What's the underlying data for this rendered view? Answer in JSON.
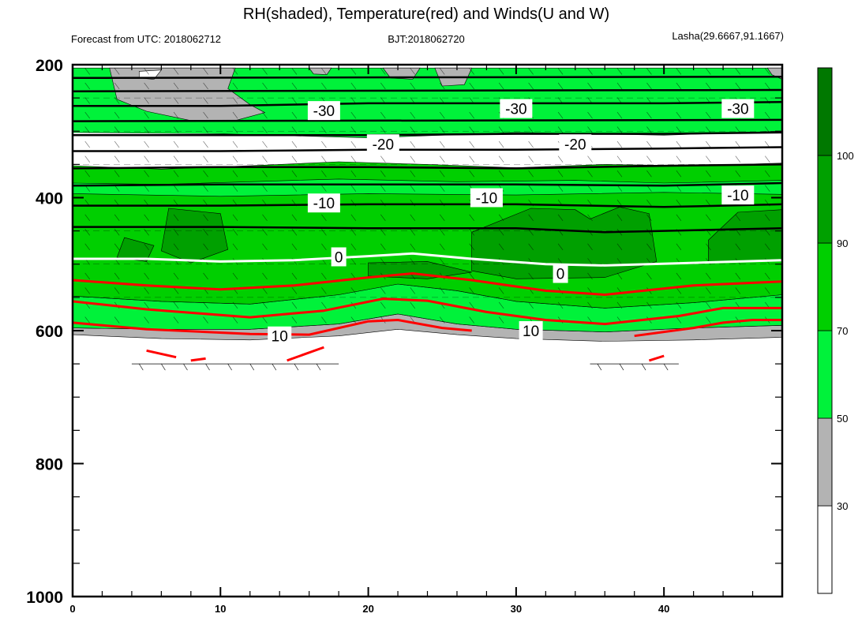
{
  "chart_data": {
    "type": "heatmap",
    "title": "RH(shaded), Temperature(red) and Winds(U and W)",
    "subtitle_left": "Forecast from UTC: 2018062712",
    "subtitle_center": "BJT:2018062720",
    "subtitle_right": "Lasha(29.6667,91.1667)",
    "xlim": [
      0,
      48
    ],
    "ylim": [
      1000,
      200
    ],
    "y_reversed": true,
    "x_ticks": [
      0,
      10,
      20,
      30,
      40
    ],
    "y_ticks": [
      200,
      400,
      600,
      800,
      1000
    ],
    "colorbar": {
      "levels": [
        30,
        50,
        70,
        90,
        100
      ],
      "labels": [
        "30",
        "50",
        "70",
        "90",
        "100"
      ],
      "colors": [
        "#ffffff",
        "#b3b3b3",
        "#00f23a",
        "#00cf00",
        "#00a000",
        "#007800"
      ]
    },
    "rh_bands": [
      {
        "name": "gray",
        "color": "#b3b3b3",
        "top": [
          [
            0,
            596
          ],
          [
            6,
            598
          ],
          [
            12,
            598
          ],
          [
            18,
            590
          ],
          [
            22,
            575
          ],
          [
            26,
            590
          ],
          [
            30,
            598
          ],
          [
            36,
            602
          ],
          [
            42,
            596
          ],
          [
            48,
            592
          ]
        ],
        "bottom": [
          [
            0,
            606
          ],
          [
            6,
            612
          ],
          [
            12,
            614
          ],
          [
            18,
            608
          ],
          [
            22,
            598
          ],
          [
            26,
            606
          ],
          [
            30,
            612
          ],
          [
            36,
            616
          ],
          [
            42,
            614
          ],
          [
            48,
            610
          ]
        ]
      },
      {
        "name": "bright-green",
        "color": "#00f23a",
        "top": [
          [
            0,
            548
          ],
          [
            6,
            556
          ],
          [
            12,
            560
          ],
          [
            18,
            546
          ],
          [
            22,
            530
          ],
          [
            26,
            540
          ],
          [
            30,
            556
          ],
          [
            36,
            566
          ],
          [
            42,
            558
          ],
          [
            48,
            546
          ]
        ],
        "bottom": [
          [
            0,
            596
          ],
          [
            6,
            598
          ],
          [
            12,
            598
          ],
          [
            18,
            590
          ],
          [
            22,
            575
          ],
          [
            26,
            590
          ],
          [
            30,
            598
          ],
          [
            36,
            602
          ],
          [
            42,
            596
          ],
          [
            48,
            592
          ]
        ]
      },
      {
        "name": "green",
        "color": "#00cf00",
        "top": [
          [
            0,
            352
          ],
          [
            6,
            357
          ],
          [
            12,
            352
          ],
          [
            18,
            346
          ],
          [
            24,
            350
          ],
          [
            30,
            355
          ],
          [
            36,
            350
          ],
          [
            42,
            352
          ],
          [
            48,
            348
          ]
        ],
        "bottom": [
          [
            0,
            548
          ],
          [
            6,
            556
          ],
          [
            12,
            560
          ],
          [
            18,
            546
          ],
          [
            22,
            530
          ],
          [
            26,
            540
          ],
          [
            30,
            556
          ],
          [
            36,
            566
          ],
          [
            42,
            558
          ],
          [
            48,
            546
          ]
        ]
      }
    ],
    "rh_patches": [
      {
        "color": "#00f23a",
        "points": [
          [
            0,
            205
          ],
          [
            48,
            205
          ],
          [
            48,
            300
          ],
          [
            40,
            306
          ],
          [
            30,
            302
          ],
          [
            20,
            310
          ],
          [
            10,
            304
          ],
          [
            0,
            302
          ]
        ]
      },
      {
        "color": "#00f23a",
        "points": [
          [
            0,
            378
          ],
          [
            6,
            380
          ],
          [
            12,
            376
          ],
          [
            18,
            372
          ],
          [
            26,
            376
          ],
          [
            34,
            374
          ],
          [
            40,
            378
          ],
          [
            48,
            374
          ],
          [
            48,
            395
          ],
          [
            40,
            392
          ],
          [
            30,
            396
          ],
          [
            20,
            394
          ],
          [
            10,
            398
          ],
          [
            0,
            394
          ]
        ]
      },
      {
        "color": "#00a000",
        "points": [
          [
            3.5,
            460
          ],
          [
            5.5,
            472
          ],
          [
            5,
            496
          ],
          [
            3,
            490
          ]
        ]
      },
      {
        "color": "#00a000",
        "points": [
          [
            6.5,
            416
          ],
          [
            10,
            424
          ],
          [
            10.5,
            478
          ],
          [
            8,
            498
          ],
          [
            6,
            480
          ]
        ]
      },
      {
        "color": "#00a000",
        "points": [
          [
            20,
            498
          ],
          [
            24,
            496
          ],
          [
            27,
            512
          ],
          [
            24,
            522
          ],
          [
            20,
            518
          ]
        ]
      },
      {
        "color": "#00a000",
        "points": [
          [
            27,
            452
          ],
          [
            31,
            416
          ],
          [
            34,
            418
          ],
          [
            35,
            432
          ],
          [
            37,
            414
          ],
          [
            39,
            424
          ],
          [
            39.5,
            496
          ],
          [
            36,
            520
          ],
          [
            30,
            522
          ],
          [
            27,
            510
          ]
        ]
      },
      {
        "color": "#00a000",
        "points": [
          [
            43,
            464
          ],
          [
            45,
            422
          ],
          [
            48,
            418
          ],
          [
            48,
            494
          ],
          [
            43,
            498
          ]
        ]
      },
      {
        "color": "#b3b3b3",
        "points": [
          [
            2.5,
            205
          ],
          [
            11,
            205
          ],
          [
            10.5,
            236
          ],
          [
            12,
            260
          ],
          [
            13,
            272
          ],
          [
            11,
            284
          ],
          [
            8,
            284
          ],
          [
            5,
            270
          ],
          [
            3,
            252
          ]
        ]
      },
      {
        "color": "#ffffff",
        "points": [
          [
            4.5,
            210
          ],
          [
            6,
            208
          ],
          [
            5.5,
            222
          ],
          [
            4.5,
            220
          ]
        ]
      },
      {
        "color": "#b3b3b3",
        "points": [
          [
            16,
            205
          ],
          [
            17.5,
            205
          ],
          [
            17.2,
            215
          ],
          [
            16.3,
            214
          ]
        ]
      },
      {
        "color": "#b3b3b3",
        "points": [
          [
            21,
            205
          ],
          [
            23.5,
            205
          ],
          [
            23,
            222
          ],
          [
            21.5,
            220
          ]
        ]
      },
      {
        "color": "#b3b3b3",
        "points": [
          [
            24.5,
            205
          ],
          [
            27,
            205
          ],
          [
            26.5,
            230
          ],
          [
            25,
            232
          ]
        ]
      },
      {
        "color": "#b3b3b3",
        "points": [
          [
            47,
            205
          ],
          [
            48,
            205
          ],
          [
            48,
            222
          ],
          [
            47.3,
            215
          ]
        ]
      }
    ],
    "temperature_contours": [
      {
        "label": "-30",
        "color": "#000000",
        "width": 2.5,
        "points": [
          [
            0,
            220
          ],
          [
            48,
            218
          ]
        ]
      },
      {
        "label": "-30",
        "color": "#000000",
        "width": 2.5,
        "points": [
          [
            0,
            240
          ],
          [
            48,
            238
          ]
        ]
      },
      {
        "label": "-30",
        "color": "#000000",
        "width": 2.5,
        "points": [
          [
            0,
            262
          ],
          [
            10,
            262
          ],
          [
            20,
            258
          ],
          [
            30,
            258
          ],
          [
            40,
            258
          ],
          [
            48,
            256
          ]
        ]
      },
      {
        "label": "-30",
        "color": "#000000",
        "width": 2.5,
        "points": [
          [
            0,
            285
          ],
          [
            48,
            283
          ]
        ]
      },
      {
        "label": "-20",
        "color": "#000000",
        "width": 2.5,
        "points": [
          [
            0,
            306
          ],
          [
            10,
            306
          ],
          [
            20,
            306
          ],
          [
            30,
            304
          ],
          [
            40,
            304
          ],
          [
            48,
            302
          ]
        ]
      },
      {
        "label": "-20",
        "color": "#000000",
        "width": 2.5,
        "points": [
          [
            0,
            330
          ],
          [
            10,
            330
          ],
          [
            20,
            328
          ],
          [
            30,
            328
          ],
          [
            40,
            326
          ],
          [
            48,
            324
          ]
        ]
      },
      {
        "label": "-20",
        "color": "#000000",
        "width": 2.5,
        "points": [
          [
            0,
            356
          ],
          [
            10,
            354
          ],
          [
            20,
            354
          ],
          [
            30,
            356
          ],
          [
            40,
            352
          ],
          [
            48,
            350
          ]
        ]
      },
      {
        "label": "-10",
        "color": "#000000",
        "width": 2.5,
        "points": [
          [
            0,
            382
          ],
          [
            10,
            380
          ],
          [
            20,
            380
          ],
          [
            30,
            380
          ],
          [
            40,
            382
          ],
          [
            48,
            378
          ]
        ]
      },
      {
        "label": "-10",
        "color": "#000000",
        "width": 2.5,
        "points": [
          [
            0,
            412
          ],
          [
            10,
            412
          ],
          [
            20,
            410
          ],
          [
            30,
            410
          ],
          [
            40,
            414
          ],
          [
            48,
            410
          ]
        ]
      },
      {
        "label": "-10",
        "color": "#000000",
        "width": 2.5,
        "points": [
          [
            0,
            444
          ],
          [
            10,
            444
          ],
          [
            20,
            446
          ],
          [
            30,
            446
          ],
          [
            36,
            452
          ],
          [
            40,
            450
          ],
          [
            48,
            446
          ]
        ]
      },
      {
        "label": "0",
        "color": "#ffffff",
        "width": 3,
        "points": [
          [
            0,
            492
          ],
          [
            5,
            492
          ],
          [
            10,
            496
          ],
          [
            15,
            494
          ],
          [
            20,
            488
          ],
          [
            23,
            484
          ],
          [
            27,
            492
          ],
          [
            32,
            500
          ],
          [
            36,
            502
          ],
          [
            42,
            498
          ],
          [
            48,
            494
          ]
        ]
      },
      {
        "label": "",
        "color": "#ff0000",
        "width": 3,
        "points": [
          [
            0,
            524
          ],
          [
            5,
            532
          ],
          [
            10,
            538
          ],
          [
            15,
            532
          ],
          [
            20,
            520
          ],
          [
            23,
            514
          ],
          [
            27,
            524
          ],
          [
            32,
            540
          ],
          [
            36,
            546
          ],
          [
            42,
            532
          ],
          [
            48,
            526
          ]
        ]
      },
      {
        "label": "",
        "color": "#ff0000",
        "width": 3,
        "points": [
          [
            0,
            556
          ],
          [
            5,
            568
          ],
          [
            12,
            580
          ],
          [
            17,
            570
          ],
          [
            21,
            552
          ],
          [
            24,
            555
          ],
          [
            28,
            572
          ],
          [
            32,
            584
          ],
          [
            36,
            590
          ],
          [
            41,
            578
          ],
          [
            44,
            566
          ],
          [
            48,
            566
          ]
        ]
      },
      {
        "label": "10",
        "color": "#ff0000",
        "width": 3,
        "points": [
          [
            0,
            588
          ],
          [
            5,
            598
          ],
          [
            12,
            605
          ],
          [
            16,
            606
          ],
          [
            20,
            586
          ],
          [
            22,
            584
          ],
          [
            25,
            596
          ],
          [
            27,
            600
          ]
        ]
      },
      {
        "label": "",
        "color": "#ff0000",
        "width": 3,
        "points": [
          [
            38,
            608
          ],
          [
            42,
            596
          ],
          [
            44,
            588
          ],
          [
            46,
            584
          ],
          [
            48,
            584
          ]
        ]
      },
      {
        "label": "",
        "color": "#ff0000",
        "width": 3,
        "points": [
          [
            5,
            630
          ],
          [
            7,
            640
          ]
        ]
      },
      {
        "label": "",
        "color": "#ff0000",
        "width": 3,
        "points": [
          [
            8,
            645
          ],
          [
            9,
            642
          ]
        ]
      },
      {
        "label": "",
        "color": "#ff0000",
        "width": 3,
        "points": [
          [
            14.5,
            645
          ],
          [
            17,
            625
          ]
        ]
      },
      {
        "label": "",
        "color": "#ff0000",
        "width": 3,
        "points": [
          [
            39,
            645
          ],
          [
            40,
            638
          ]
        ]
      }
    ],
    "contour_labels": [
      {
        "text": "-30",
        "x": 17,
        "y": 269
      },
      {
        "text": "-30",
        "x": 30,
        "y": 266
      },
      {
        "text": "-30",
        "x": 45,
        "y": 266
      },
      {
        "text": "-20",
        "x": 21,
        "y": 319
      },
      {
        "text": "-20",
        "x": 34,
        "y": 319
      },
      {
        "text": "-10",
        "x": 17,
        "y": 408
      },
      {
        "text": "-10",
        "x": 28,
        "y": 400
      },
      {
        "text": "-10",
        "x": 45,
        "y": 396
      },
      {
        "text": "0",
        "x": 18,
        "y": 489
      },
      {
        "text": "0",
        "x": 33,
        "y": 514
      },
      {
        "text": "10",
        "x": 14,
        "y": 608
      },
      {
        "text": "10",
        "x": 31,
        "y": 600
      }
    ]
  }
}
